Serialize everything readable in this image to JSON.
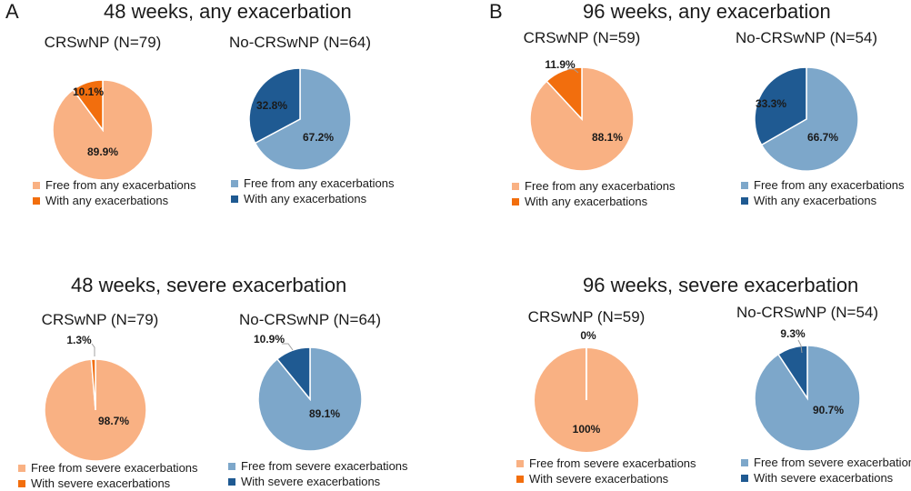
{
  "panels": {
    "a": "A",
    "b": "B"
  },
  "sections": {
    "a_top": "48 weeks, any exacerbation",
    "b_top": "96 weeks, any exacerbation",
    "a_bottom": "48 weeks, severe exacerbation",
    "b_bottom": "96 weeks, severe exacerbation"
  },
  "colors": {
    "crs_free": "#F9B183",
    "crs_with": "#F26E0D",
    "no_free": "#7DA7CA",
    "no_with": "#1F5A92"
  },
  "chart_data": [
    {
      "id": "a1",
      "type": "pie",
      "title": "CRSwNP (N=79)",
      "labels": [
        "Free from any exacerbations",
        "With any exacerbations"
      ],
      "values": [
        89.9,
        10.1
      ],
      "value_labels": [
        "89.9%",
        "10.1%"
      ]
    },
    {
      "id": "a2",
      "type": "pie",
      "title": "No-CRSwNP (N=64)",
      "labels": [
        "Free from any exacerbations",
        "With any exacerbations"
      ],
      "values": [
        67.2,
        32.8
      ],
      "value_labels": [
        "67.2%",
        "32.8%"
      ]
    },
    {
      "id": "b1",
      "type": "pie",
      "title": "CRSwNP (N=59)",
      "labels": [
        "Free from any exacerbations",
        "With any exacerbations"
      ],
      "values": [
        88.1,
        11.9
      ],
      "value_labels": [
        "88.1%",
        "11.9%"
      ]
    },
    {
      "id": "b2",
      "type": "pie",
      "title": "No-CRSwNP (N=54)",
      "labels": [
        "Free from any exacerbations",
        "With any exacerbations"
      ],
      "values": [
        66.7,
        33.3
      ],
      "value_labels": [
        "66.7%",
        "33.3%"
      ]
    },
    {
      "id": "a3",
      "type": "pie",
      "title": "CRSwNP (N=79)",
      "labels": [
        "Free from severe exacerbations",
        "With severe exacerbations"
      ],
      "values": [
        98.7,
        1.3
      ],
      "value_labels": [
        "98.7%",
        "1.3%"
      ]
    },
    {
      "id": "a4",
      "type": "pie",
      "title": "No-CRSwNP (N=64)",
      "labels": [
        "Free from severe exacerbations",
        "With severe exacerbations"
      ],
      "values": [
        89.1,
        10.9
      ],
      "value_labels": [
        "89.1%",
        "10.9%"
      ]
    },
    {
      "id": "b3",
      "type": "pie",
      "title": "CRSwNP (N=59)",
      "labels": [
        "Free from severe exacerbations",
        "With severe exacerbations"
      ],
      "values": [
        100,
        0
      ],
      "value_labels": [
        "100%",
        "0%"
      ]
    },
    {
      "id": "b4",
      "type": "pie",
      "title": "No-CRSwNP (N=54)",
      "labels": [
        "Free from severe exacerbations",
        "With severe exacerbations"
      ],
      "values": [
        90.7,
        9.3
      ],
      "value_labels": [
        "90.7%",
        "9.3%"
      ]
    }
  ]
}
